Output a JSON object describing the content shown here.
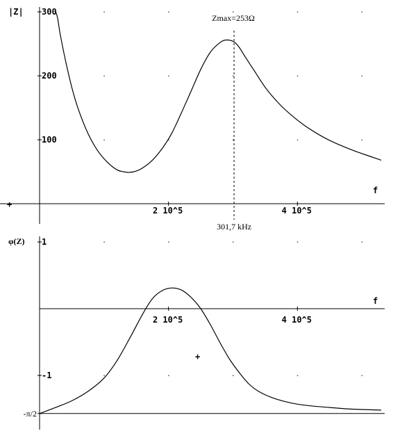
{
  "chart_data": [
    {
      "type": "line",
      "ylabel": "|Z|",
      "xlabel": "f",
      "xlim": [
        0,
        530000
      ],
      "ylim": [
        0,
        300
      ],
      "x_ticks": [
        {
          "value": 200000,
          "label": "2 10^5"
        },
        {
          "value": 400000,
          "label": "4 10^5"
        }
      ],
      "y_ticks": [
        {
          "value": 100,
          "label": "100"
        },
        {
          "value": 200,
          "label": "200"
        },
        {
          "value": 300,
          "label": "300"
        }
      ],
      "grid": "dots",
      "annotations": {
        "peak_label": "Zmax=253Ω",
        "freq_label": "301,7 kHz",
        "peak_x": 301700,
        "peak_y": 253
      },
      "series": [
        {
          "x": [
            25000,
            28000,
            32000,
            40000,
            50000,
            60000,
            75000,
            90000,
            105000,
            120000,
            130000,
            140000,
            150000,
            160000,
            175000,
            190000,
            205000,
            220000,
            235000,
            250000,
            265000,
            280000,
            290000,
            301700,
            310000,
            320000,
            335000,
            350000,
            370000,
            390000,
            410000,
            430000,
            450000,
            470000,
            490000,
            510000,
            530000
          ],
          "y": [
            300,
            290,
            265,
            225,
            182,
            148,
            110,
            83,
            65,
            53,
            50,
            49,
            51,
            56,
            68,
            86,
            110,
            142,
            176,
            210,
            237,
            252,
            256,
            253,
            244,
            228,
            205,
            182,
            158,
            139,
            123,
            110,
            99,
            90,
            82,
            75,
            68
          ]
        }
      ]
    },
    {
      "type": "line",
      "ylabel": "φ(Z)",
      "xlabel": "f",
      "xlim": [
        0,
        530000
      ],
      "ylim": [
        -1.5708,
        1
      ],
      "x_ticks": [
        {
          "value": 200000,
          "label": "2 10^5"
        },
        {
          "value": 400000,
          "label": "4 10^5"
        }
      ],
      "y_ticks": [
        {
          "value": 1,
          "label": "1"
        },
        {
          "value": -1,
          "label": "-1"
        },
        {
          "value": -1.5708,
          "label": "-π/2"
        }
      ],
      "grid": "dots",
      "series": [
        {
          "x": [
            0,
            25000,
            50000,
            75000,
            100000,
            120000,
            140000,
            160000,
            175000,
            190000,
            205000,
            220000,
            235000,
            250000,
            265000,
            280000,
            295000,
            310000,
            325000,
            340000,
            360000,
            380000,
            400000,
            425000,
            450000,
            475000,
            500000,
            530000
          ],
          "y": [
            -1.5708,
            -1.48,
            -1.38,
            -1.24,
            -1.04,
            -0.78,
            -0.44,
            -0.08,
            0.15,
            0.27,
            0.31,
            0.28,
            0.17,
            0.0,
            -0.24,
            -0.51,
            -0.76,
            -0.96,
            -1.13,
            -1.24,
            -1.33,
            -1.39,
            -1.43,
            -1.46,
            -1.48,
            -1.5,
            -1.51,
            -1.52
          ]
        }
      ]
    }
  ]
}
